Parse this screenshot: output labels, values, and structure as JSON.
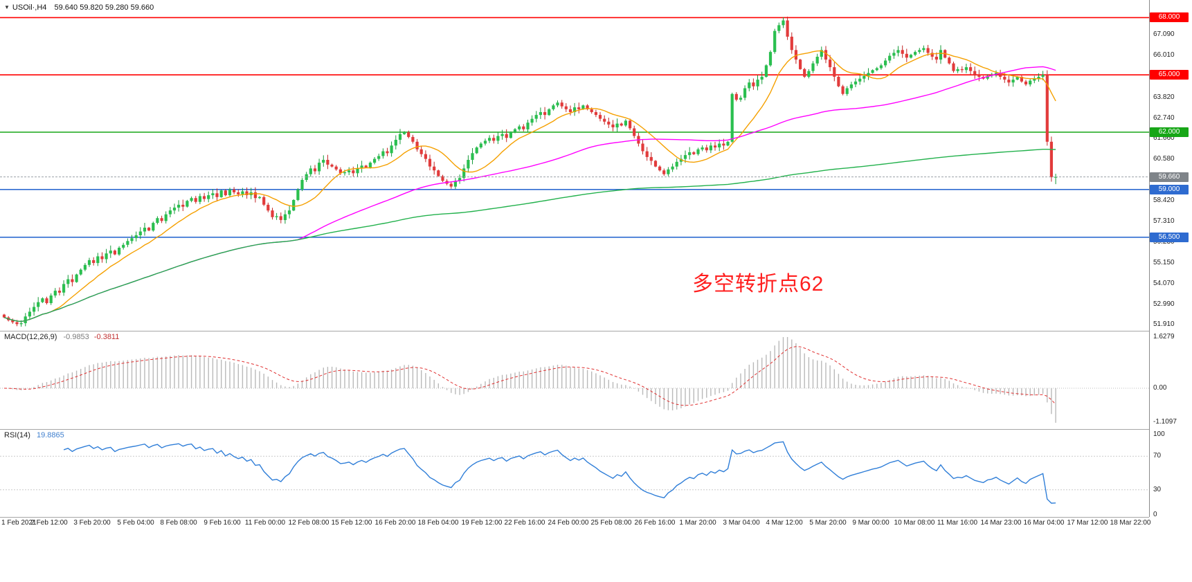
{
  "header": {
    "dropdown_icon": "▼",
    "symbol": "USOil·,H4",
    "ohlc": "59.640 59.820 59.280 59.660"
  },
  "main_chart": {
    "annotation": {
      "text": "多空转折点62",
      "color": "#ff1f1f"
    },
    "hlines": [
      {
        "price": 68.0,
        "label": "68.000",
        "color": "#ff0000"
      },
      {
        "price": 65.0,
        "label": "65.000",
        "color": "#ff0000"
      },
      {
        "price": 62.0,
        "label": "62.000",
        "color": "#17a617"
      },
      {
        "price": 59.0,
        "label": "59.000",
        "color": "#2e6bd0"
      },
      {
        "price": 56.5,
        "label": "56.500",
        "color": "#2e6bd0"
      }
    ],
    "bid_badge": {
      "price": 59.66,
      "label": "59.660",
      "color": "#7f8489"
    }
  },
  "macd_label": {
    "title": "MACD(12,26,9)",
    "value": "-0.9853",
    "signal": "-0.3811"
  },
  "rsi_label": {
    "title": "RSI(14)",
    "value": "19.8865"
  },
  "chart_data": {
    "type": "candlestick",
    "symbol": "USOil",
    "timeframe": "H4",
    "current_bar": {
      "open": "59.640",
      "high": "59.820",
      "low": "59.280",
      "close": "59.660"
    },
    "price_ticks": [
      "67.090",
      "66.010",
      "63.820",
      "62.740",
      "61.660",
      "60.580",
      "58.420",
      "57.310",
      "56.230",
      "55.150",
      "54.070",
      "52.990",
      "51.910"
    ],
    "x_labels": [
      "1 Feb 2021",
      "2 Feb 12:00",
      "3 Feb 20:00",
      "5 Feb 04:00",
      "8 Feb 08:00",
      "9 Feb 16:00",
      "11 Feb 00:00",
      "12 Feb 08:00",
      "15 Feb 12:00",
      "16 Feb 20:00",
      "18 Feb 04:00",
      "19 Feb 12:00",
      "22 Feb 16:00",
      "24 Feb 00:00",
      "25 Feb 08:00",
      "26 Feb 16:00",
      "1 Mar 20:00",
      "3 Mar 04:00",
      "4 Mar 12:00",
      "5 Mar 20:00",
      "9 Mar 00:00",
      "10 Mar 08:00",
      "11 Mar 16:00",
      "14 Mar 23:00",
      "16 Mar 04:00",
      "17 Mar 12:00",
      "18 Mar 22:00"
    ],
    "first_open": 52.45,
    "last_candle": {
      "high": 59.82,
      "low": 59.28
    },
    "closes": [
      52.3,
      52.15,
      52.05,
      51.95,
      52.0,
      52.35,
      52.6,
      52.85,
      53.1,
      53.3,
      53.05,
      53.45,
      53.7,
      53.6,
      54.05,
      54.3,
      54.15,
      54.55,
      54.8,
      55.05,
      55.3,
      55.15,
      55.5,
      55.35,
      55.65,
      55.8,
      55.6,
      55.95,
      56.1,
      56.3,
      56.45,
      56.6,
      56.8,
      57.0,
      56.85,
      57.25,
      57.5,
      57.35,
      57.7,
      57.9,
      58.05,
      58.2,
      58.1,
      58.4,
      58.55,
      58.35,
      58.65,
      58.5,
      58.7,
      58.8,
      58.6,
      58.95,
      58.7,
      59.0,
      58.85,
      58.75,
      58.9,
      58.7,
      58.85,
      58.55,
      58.6,
      58.2,
      57.9,
      57.55,
      57.6,
      57.4,
      57.7,
      57.9,
      58.45,
      59.0,
      59.5,
      59.8,
      60.1,
      59.95,
      60.4,
      60.55,
      60.3,
      60.2,
      60.05,
      59.85,
      59.9,
      60.0,
      59.85,
      60.1,
      60.25,
      60.15,
      60.4,
      60.6,
      60.75,
      61.0,
      60.9,
      61.3,
      61.6,
      61.9,
      62.0,
      61.75,
      61.5,
      61.1,
      60.85,
      60.6,
      60.2,
      60.0,
      59.7,
      59.45,
      59.3,
      59.15,
      59.45,
      59.6,
      60.1,
      60.55,
      60.9,
      61.2,
      61.4,
      61.55,
      61.7,
      61.55,
      61.8,
      61.9,
      61.7,
      62.0,
      62.15,
      62.3,
      62.15,
      62.5,
      62.7,
      62.9,
      63.05,
      62.9,
      63.2,
      63.4,
      63.55,
      63.35,
      63.2,
      63.05,
      63.3,
      63.2,
      63.4,
      63.2,
      63.05,
      62.9,
      62.7,
      62.55,
      62.4,
      62.25,
      62.45,
      62.35,
      62.6,
      62.2,
      61.8,
      61.4,
      61.0,
      60.7,
      60.5,
      60.2,
      60.0,
      59.8,
      60.05,
      60.2,
      60.45,
      60.6,
      60.8,
      60.95,
      60.85,
      61.1,
      61.2,
      61.05,
      61.3,
      61.2,
      61.4,
      61.3,
      61.5,
      64.0,
      63.7,
      63.8,
      64.3,
      64.6,
      64.4,
      64.75,
      64.9,
      65.5,
      66.2,
      67.3,
      67.6,
      67.85,
      67.0,
      66.3,
      65.8,
      65.3,
      64.9,
      65.2,
      65.6,
      65.95,
      66.3,
      65.8,
      65.4,
      64.9,
      64.4,
      64.0,
      64.3,
      64.5,
      64.65,
      64.8,
      64.95,
      65.1,
      65.25,
      65.35,
      65.5,
      65.75,
      66.0,
      66.15,
      66.3,
      66.1,
      65.9,
      66.05,
      66.2,
      66.3,
      66.4,
      66.15,
      65.95,
      65.8,
      66.3,
      65.9,
      65.6,
      65.2,
      65.3,
      65.25,
      65.4,
      65.2,
      65.0,
      64.9,
      64.8,
      64.95,
      65.0,
      65.1,
      64.9,
      64.75,
      64.6,
      64.75,
      64.9,
      64.65,
      64.5,
      64.7,
      64.8,
      64.9,
      65.0,
      61.5,
      59.64,
      59.66
    ],
    "colors": {
      "up": "#2abf4f",
      "up_stroke": "#159a38",
      "down": "#e23b3b",
      "down_stroke": "#c22525",
      "rsi_line": "#2f7ed8",
      "macd_hist": "#b9b9b9",
      "macd_signal": "#e03030",
      "bid_line": "#9aa0a6"
    },
    "moving_averages": [
      {
        "name": "fast",
        "window": 12,
        "color": "#f5a000"
      },
      {
        "name": "mid",
        "window": 70,
        "color": "#ff00ff"
      },
      {
        "name": "slow",
        "window": "cumulative",
        "color": "#22b14c"
      }
    ],
    "macd": {
      "fast": 12,
      "slow": 26,
      "signal": 9,
      "display_value": "-0.9853",
      "display_signal": "-0.3811",
      "scale_labels": [
        "1.6279",
        "0.00",
        "-1.1097"
      ]
    },
    "rsi": {
      "period": 14,
      "display_value": "19.8865",
      "levels": [
        70,
        30
      ],
      "scale_labels": [
        "100",
        "70",
        "30",
        "0"
      ]
    }
  }
}
